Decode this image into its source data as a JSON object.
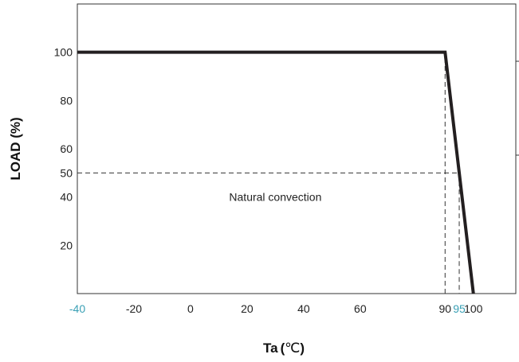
{
  "chart_data": {
    "type": "line",
    "xlabel": "Ta",
    "xunit_open": "(",
    "xunit_symbol": "℃",
    "xunit_close": ")",
    "ylabel": "LOAD (%)",
    "xlim": [
      -40,
      115
    ],
    "ylim": [
      0,
      120
    ],
    "grid": false,
    "x_ticks": [
      {
        "value": -40,
        "label": "-40",
        "highlight": true
      },
      {
        "value": -20,
        "label": "-20",
        "highlight": false
      },
      {
        "value": 0,
        "label": "0",
        "highlight": false
      },
      {
        "value": 20,
        "label": "20",
        "highlight": false
      },
      {
        "value": 40,
        "label": "40",
        "highlight": false
      },
      {
        "value": 60,
        "label": "60",
        "highlight": false
      },
      {
        "value": 90,
        "label": "90",
        "highlight": false
      },
      {
        "value": 95,
        "label": "95",
        "highlight": true
      },
      {
        "value": 100,
        "label": "100",
        "highlight": false
      }
    ],
    "y_ticks": [
      {
        "value": 20,
        "label": "20"
      },
      {
        "value": 40,
        "label": "40"
      },
      {
        "value": 50,
        "label": "50"
      },
      {
        "value": 60,
        "label": "60"
      },
      {
        "value": 80,
        "label": "80"
      },
      {
        "value": 100,
        "label": "100"
      }
    ],
    "series": [
      {
        "x": [
          -40,
          90,
          100
        ],
        "y": [
          100,
          100,
          0
        ]
      }
    ],
    "reference_lines": [
      {
        "points": [
          [
            90,
            0
          ],
          [
            90,
            100
          ]
        ]
      },
      {
        "points": [
          [
            -40,
            50
          ],
          [
            95,
            50
          ],
          [
            95,
            0
          ]
        ]
      }
    ],
    "annotation": {
      "text": "Natural convection",
      "x": 30,
      "y": 40
    },
    "colors": {
      "line": "#231f20",
      "highlight_tick": "#3aa0b5",
      "axis": "#333333",
      "dashed": "#333333"
    }
  }
}
